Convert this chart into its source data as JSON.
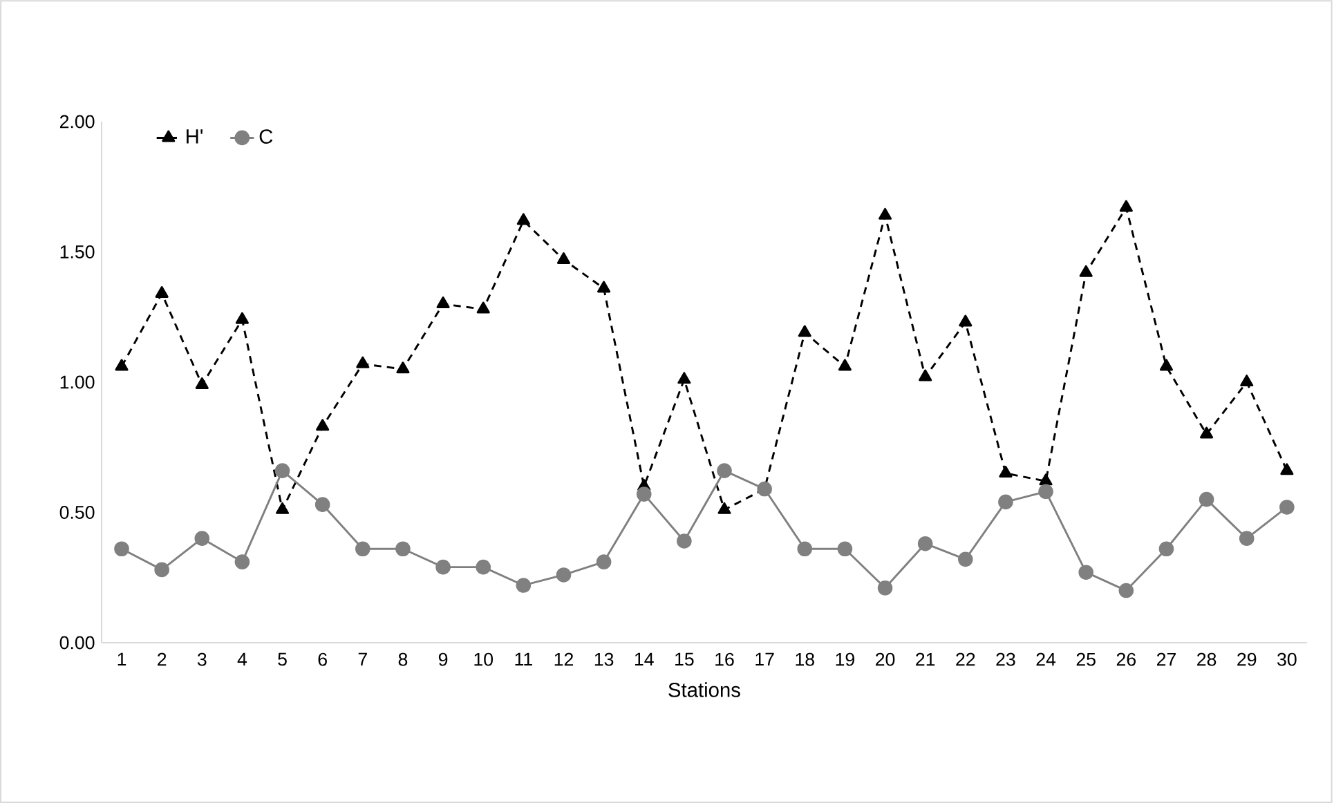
{
  "chart_data": {
    "type": "line",
    "xlabel": "Stations",
    "categories": [
      "1",
      "2",
      "3",
      "4",
      "5",
      "6",
      "7",
      "8",
      "9",
      "10",
      "11",
      "12",
      "13",
      "14",
      "15",
      "16",
      "17",
      "18",
      "19",
      "20",
      "21",
      "22",
      "23",
      "24",
      "25",
      "26",
      "27",
      "28",
      "29",
      "30"
    ],
    "series": [
      {
        "name": "H'",
        "color": "#000000",
        "marker": "triangle",
        "line_style": "dashed",
        "values": [
          1.06,
          1.34,
          0.99,
          1.24,
          0.51,
          0.83,
          1.07,
          1.05,
          1.3,
          1.28,
          1.62,
          1.47,
          1.36,
          0.6,
          1.01,
          0.51,
          0.59,
          1.19,
          1.06,
          1.64,
          1.02,
          1.23,
          0.65,
          0.62,
          1.42,
          1.67,
          1.06,
          0.8,
          1.0,
          0.66
        ]
      },
      {
        "name": "C",
        "color": "#808080",
        "marker": "circle",
        "line_style": "solid",
        "values": [
          0.36,
          0.28,
          0.4,
          0.31,
          0.66,
          0.53,
          0.36,
          0.36,
          0.29,
          0.29,
          0.22,
          0.26,
          0.31,
          0.57,
          0.39,
          0.66,
          0.59,
          0.36,
          0.36,
          0.21,
          0.38,
          0.32,
          0.54,
          0.58,
          0.27,
          0.2,
          0.36,
          0.55,
          0.4,
          0.52
        ]
      }
    ],
    "ylim": [
      0,
      2
    ],
    "yticks": [
      {
        "value": 0,
        "label": "0.00"
      },
      {
        "value": 0.5,
        "label": "0.50"
      },
      {
        "value": 1,
        "label": "1.00"
      },
      {
        "value": 1.5,
        "label": "1.50"
      },
      {
        "value": 2,
        "label": "2.00"
      }
    ],
    "grid": false,
    "legend": "top left"
  }
}
